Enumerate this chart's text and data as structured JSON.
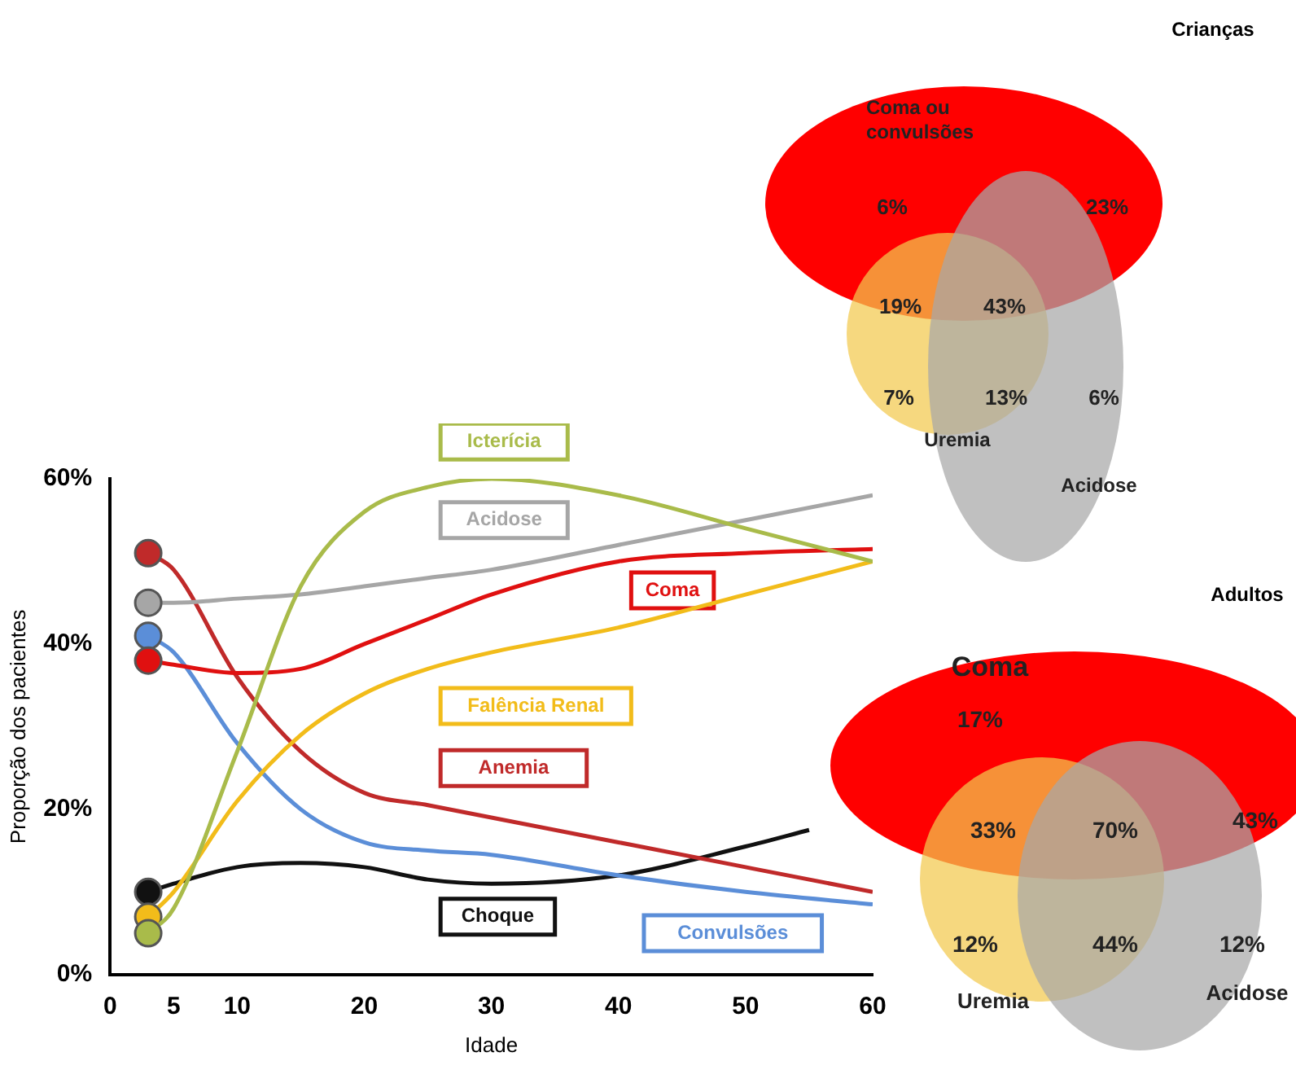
{
  "chart_data": [
    {
      "type": "line",
      "xlabel": "Idade",
      "ylabel": "Proporção dos pacientes",
      "xlim": [
        0,
        60
      ],
      "xticks": [
        0,
        5,
        10,
        20,
        30,
        40,
        50,
        60
      ],
      "ylim": [
        0,
        60
      ],
      "yticks": [
        {
          "value": 0,
          "label": "0%"
        },
        {
          "value": 20,
          "label": "20%"
        },
        {
          "value": 40,
          "label": "40%"
        },
        {
          "value": 60,
          "label": "60%"
        }
      ],
      "grid": false,
      "legend": false,
      "x": [
        3,
        5,
        10,
        15,
        20,
        25,
        30,
        40,
        50,
        60
      ],
      "series": [
        {
          "name": "Icterícia",
          "color": "#a9bb4a",
          "values": [
            5,
            8,
            27,
            47,
            56,
            59,
            60,
            58,
            54,
            50
          ]
        },
        {
          "name": "Acidose",
          "color": "#a6a6a6",
          "values": [
            45,
            45,
            45.5,
            46,
            47,
            48,
            49,
            52,
            55,
            58
          ]
        },
        {
          "name": "Coma",
          "color": "#e01010",
          "values": [
            38,
            37.5,
            36.5,
            37,
            40,
            43,
            46,
            50,
            51,
            51.5
          ]
        },
        {
          "name": "Falência Renal",
          "color": "#f2bc1a",
          "values": [
            7,
            10,
            21,
            29,
            34,
            37,
            39,
            42,
            46,
            50
          ]
        },
        {
          "name": "Anemia",
          "color": "#c02a2a",
          "values": [
            51,
            49,
            36,
            27,
            22,
            20.5,
            19,
            16,
            13,
            10
          ]
        },
        {
          "name": "Convulsões",
          "color": "#5b8ed8",
          "values": [
            41,
            39,
            28,
            20,
            16,
            15,
            14.5,
            12,
            10,
            8.5
          ]
        },
        {
          "name": "Choque",
          "color": "#111111",
          "x": [
            3,
            5,
            10,
            15,
            20,
            25,
            30,
            40,
            50,
            55
          ],
          "values": [
            10,
            11,
            13,
            13.5,
            13,
            11.5,
            11,
            12,
            15.5,
            17.5
          ]
        }
      ]
    },
    {
      "type": "other",
      "title": "Crianças",
      "categories": [
        "Coma ou convulsões",
        "Uremia",
        "Acidose"
      ],
      "colors": [
        "#ff0000",
        "#f3c94e",
        "#a8a8a8"
      ],
      "annotations": [
        "6%",
        "23%",
        "19%",
        "43%",
        "7%",
        "13%",
        "6%"
      ]
    },
    {
      "type": "other",
      "title": "Adultos",
      "categories": [
        "Coma",
        "Uremia",
        "Acidose"
      ],
      "colors": [
        "#ff0000",
        "#f3c94e",
        "#a8a8a8"
      ],
      "annotations": [
        "17%",
        "33%",
        "70%",
        "43%",
        "12%",
        "44%",
        "12%"
      ]
    }
  ]
}
